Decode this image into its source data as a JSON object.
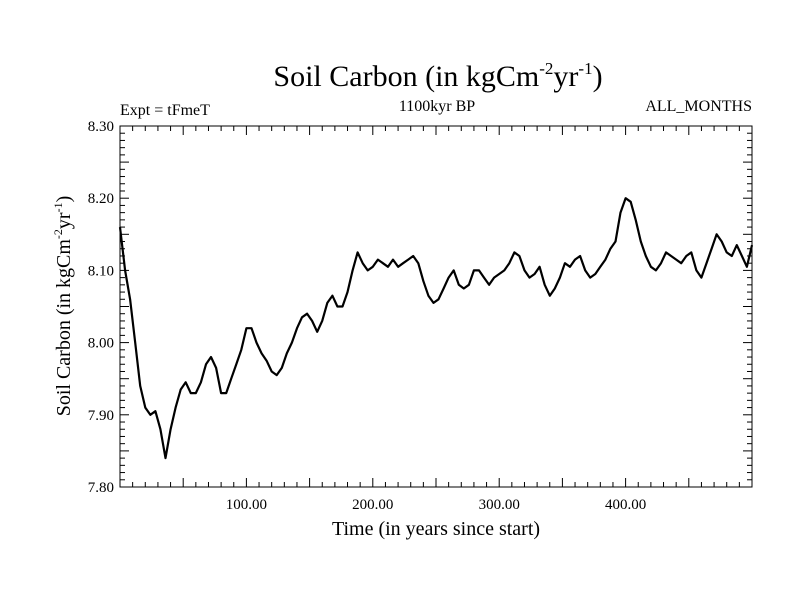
{
  "chart_data": {
    "type": "line",
    "title_parts": [
      "Soil Carbon (in kgCm",
      "-2",
      "yr",
      "-1",
      ")"
    ],
    "subtitle_left": "Expt = tFmeT",
    "subtitle_center": "1100kyr BP",
    "subtitle_right": "ALL_MONTHS",
    "xlabel": "Time (in years since start)",
    "ylabel_parts": [
      "Soil Carbon (in kgCm",
      "-2",
      "yr",
      "-1",
      ")"
    ],
    "xlim": [
      0,
      500
    ],
    "ylim": [
      7.8,
      8.3
    ],
    "xticks": [
      100,
      200,
      300,
      400
    ],
    "xtick_labels": [
      "100.00",
      "200.00",
      "300.00",
      "400.00"
    ],
    "yticks": [
      7.8,
      7.9,
      8.0,
      8.1,
      8.2,
      8.3
    ],
    "ytick_labels": [
      "7.80",
      "7.90",
      "8.00",
      "8.10",
      "8.20",
      "8.30"
    ],
    "series": [
      {
        "name": "Soil Carbon",
        "color": "#000000",
        "x": [
          0,
          4,
          8,
          12,
          16,
          20,
          24,
          28,
          32,
          36,
          40,
          44,
          48,
          52,
          56,
          60,
          64,
          68,
          72,
          76,
          80,
          84,
          88,
          92,
          96,
          100,
          104,
          108,
          112,
          116,
          120,
          124,
          128,
          132,
          136,
          140,
          144,
          148,
          152,
          156,
          160,
          164,
          168,
          172,
          176,
          180,
          184,
          188,
          192,
          196,
          200,
          204,
          208,
          212,
          216,
          220,
          224,
          228,
          232,
          236,
          240,
          244,
          248,
          252,
          256,
          260,
          264,
          268,
          272,
          276,
          280,
          284,
          288,
          292,
          296,
          300,
          304,
          308,
          312,
          316,
          320,
          324,
          328,
          332,
          336,
          340,
          344,
          348,
          352,
          356,
          360,
          364,
          368,
          372,
          376,
          380,
          384,
          388,
          392,
          396,
          400,
          404,
          408,
          412,
          416,
          420,
          424,
          428,
          432,
          436,
          440,
          444,
          448,
          452,
          456,
          460,
          464,
          468,
          472,
          476,
          480,
          484,
          488,
          492,
          496,
          500
        ],
        "y": [
          8.16,
          8.1,
          8.06,
          8.0,
          7.94,
          7.91,
          7.9,
          7.905,
          7.88,
          7.84,
          7.88,
          7.91,
          7.935,
          7.945,
          7.93,
          7.93,
          7.945,
          7.97,
          7.98,
          7.965,
          7.93,
          7.93,
          7.95,
          7.97,
          7.99,
          8.02,
          8.02,
          8.0,
          7.985,
          7.975,
          7.96,
          7.955,
          7.965,
          7.985,
          8.0,
          8.02,
          8.035,
          8.04,
          8.03,
          8.015,
          8.03,
          8.055,
          8.065,
          8.05,
          8.05,
          8.07,
          8.1,
          8.125,
          8.11,
          8.1,
          8.105,
          8.115,
          8.11,
          8.105,
          8.115,
          8.105,
          8.11,
          8.115,
          8.12,
          8.11,
          8.085,
          8.065,
          8.055,
          8.06,
          8.075,
          8.09,
          8.1,
          8.08,
          8.075,
          8.08,
          8.1,
          8.1,
          8.09,
          8.08,
          8.09,
          8.095,
          8.1,
          8.11,
          8.125,
          8.12,
          8.1,
          8.09,
          8.095,
          8.105,
          8.08,
          8.065,
          8.075,
          8.09,
          8.11,
          8.105,
          8.115,
          8.12,
          8.1,
          8.09,
          8.095,
          8.105,
          8.115,
          8.13,
          8.14,
          8.18,
          8.2,
          8.195,
          8.17,
          8.14,
          8.12,
          8.105,
          8.1,
          8.11,
          8.125,
          8.12,
          8.115,
          8.11,
          8.12,
          8.125,
          8.1,
          8.09,
          8.11,
          8.13,
          8.15,
          8.14,
          8.125,
          8.12,
          8.135,
          8.12,
          8.105,
          8.135
        ]
      }
    ]
  }
}
